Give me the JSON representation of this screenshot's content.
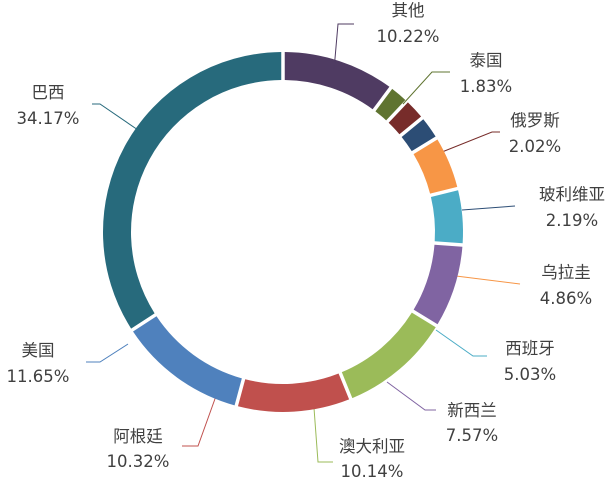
{
  "chart_data": {
    "type": "pie",
    "variant": "donut",
    "title": "",
    "legend": "none",
    "slices": [
      {
        "name": "其他",
        "value": 10.22,
        "label": "10.22%",
        "color": "#4f3b62"
      },
      {
        "name": "泰国",
        "value": 1.83,
        "label": "1.83%",
        "color": "#5f7430"
      },
      {
        "name": "俄罗斯",
        "value": 2.02,
        "label": "2.02%",
        "color": "#772c2a"
      },
      {
        "name": "玻利维亚",
        "value": 2.19,
        "label": "2.19%",
        "color": "#2c4d75"
      },
      {
        "name": "乌拉圭",
        "value": 4.86,
        "label": "4.86%",
        "color": "#f79646"
      },
      {
        "name": "西班牙",
        "value": 5.03,
        "label": "5.03%",
        "color": "#4bacc6"
      },
      {
        "name": "新西兰",
        "value": 7.57,
        "label": "7.57%",
        "color": "#8064a2"
      },
      {
        "name": "澳大利亚",
        "value": 10.14,
        "label": "10.14%",
        "color": "#9bbb59"
      },
      {
        "name": "阿根廷",
        "value": 10.32,
        "label": "10.32%",
        "color": "#c0504d"
      },
      {
        "name": "美国",
        "value": 11.65,
        "label": "11.65%",
        "color": "#4f81bd"
      },
      {
        "name": "巴西",
        "value": 34.17,
        "label": "34.17%",
        "color": "#276a7c"
      }
    ]
  }
}
